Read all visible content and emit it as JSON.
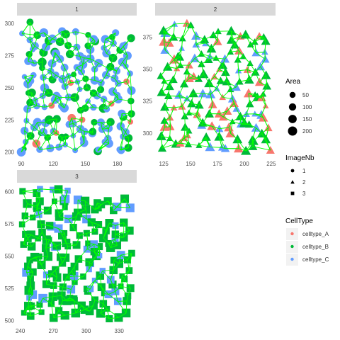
{
  "chart_data": {
    "type": "scatter",
    "description_free": true,
    "facets": [
      {
        "strip": "1",
        "shape": "circle",
        "xlim": [
          86,
          198
        ],
        "ylim": [
          196,
          306
        ],
        "x_ticks": [
          90,
          120,
          150,
          180
        ],
        "y_ticks": [
          200,
          225,
          250,
          275,
          300
        ],
        "seed": 11,
        "n_points": 170,
        "mix": {
          "celltype_A": 0.1,
          "celltype_B": 0.32,
          "celltype_C": 0.58
        },
        "highlights": [
          {
            "x": 182,
            "y": 202,
            "celltype": "celltype_C",
            "area": 60
          },
          {
            "x": 90,
            "y": 200,
            "celltype": "celltype_C",
            "area": 180
          }
        ]
      },
      {
        "strip": "2",
        "shape": "triangle",
        "xlim": [
          117,
          229
        ],
        "ylim": [
          281,
          392
        ],
        "x_ticks": [
          125,
          150,
          175,
          200,
          225
        ],
        "y_ticks": [
          300,
          325,
          350,
          375
        ],
        "seed": 23,
        "n_points": 160,
        "mix": {
          "celltype_A": 0.25,
          "celltype_B": 0.5,
          "celltype_C": 0.25
        },
        "highlights": [
          {
            "x": 220,
            "y": 295,
            "celltype": "celltype_B",
            "area": 150
          }
        ]
      },
      {
        "strip": "3",
        "shape": "square",
        "xlim": [
          237,
          346
        ],
        "ylim": [
          497,
          607
        ],
        "x_ticks": [
          240,
          270,
          300,
          330
        ],
        "y_ticks": [
          500,
          525,
          550,
          575,
          600
        ],
        "seed": 37,
        "n_points": 175,
        "mix": {
          "celltype_A": 0.0,
          "celltype_B": 0.82,
          "celltype_C": 0.18
        },
        "highlights": []
      }
    ],
    "legend": {
      "position": "right",
      "area": {
        "title": "Area",
        "values": [
          50,
          100,
          150,
          200
        ]
      },
      "image": {
        "title": "ImageNb",
        "labels": [
          "1",
          "2",
          "3"
        ],
        "shapes": [
          "circle",
          "triangle",
          "square"
        ]
      },
      "celltype": {
        "title": "CellType",
        "labels": [
          "celltype_A",
          "celltype_B",
          "celltype_C"
        ],
        "colors": [
          "#F8766D",
          "#00BA38",
          "#619CFF"
        ]
      }
    },
    "edge_color": "#00FF00",
    "strip_fill": "#D9D9D9",
    "panel_background": "#FFFFFF",
    "grid": false
  }
}
